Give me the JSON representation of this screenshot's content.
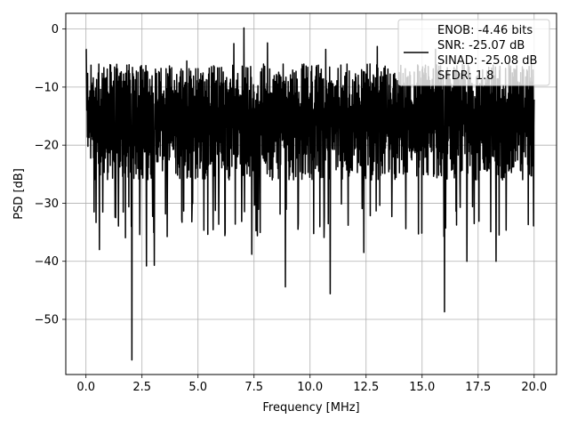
{
  "chart_data": {
    "type": "line",
    "title": "",
    "xlabel": "Frequency [MHz]",
    "ylabel": "PSD [dB]",
    "xlim": [
      -0.9,
      21.0
    ],
    "ylim": [
      -59.5,
      2.7
    ],
    "xticks": [
      0.0,
      2.5,
      5.0,
      7.5,
      10.0,
      12.5,
      15.0,
      17.5,
      20.0
    ],
    "xtick_labels": [
      "0.0",
      "2.5",
      "5.0",
      "7.5",
      "10.0",
      "12.5",
      "15.0",
      "17.5",
      "20.0"
    ],
    "yticks": [
      0,
      -10,
      -20,
      -30,
      -40,
      -50
    ],
    "ytick_labels": [
      "0",
      "−10",
      "−20",
      "−30",
      "−40",
      "−50"
    ],
    "grid": true,
    "legend_position": "top-right",
    "series": [
      {
        "color": "#000000",
        "x_range": [
          0.0,
          20.0
        ],
        "typical_range_db": [
          -30,
          -6
        ],
        "peaks": [
          {
            "x": 0.0,
            "y": -3.5
          },
          {
            "x": 4.5,
            "y": -5.5
          },
          {
            "x": 6.6,
            "y": -2.5
          },
          {
            "x": 7.05,
            "y": 0.2
          },
          {
            "x": 8.1,
            "y": -2.4
          },
          {
            "x": 10.7,
            "y": -3.5
          },
          {
            "x": 13.0,
            "y": -3.0
          },
          {
            "x": 15.6,
            "y": -3.5
          }
        ],
        "dips": [
          {
            "x": 0.6,
            "y": -38.0
          },
          {
            "x": 2.05,
            "y": -57.0
          },
          {
            "x": 2.7,
            "y": -40.8
          },
          {
            "x": 3.05,
            "y": -40.7
          },
          {
            "x": 7.4,
            "y": -38.8
          },
          {
            "x": 8.9,
            "y": -44.4
          },
          {
            "x": 10.9,
            "y": -45.6
          },
          {
            "x": 12.4,
            "y": -38.5
          },
          {
            "x": 16.0,
            "y": -48.7
          },
          {
            "x": 17.0,
            "y": -40.0
          },
          {
            "x": 18.3,
            "y": -40.0
          }
        ]
      }
    ],
    "legend": {
      "lines": [
        "ENOB: -4.46 bits",
        "SNR: -25.07 dB",
        "SINAD: -25.08 dB",
        "SFDR: 1.8"
      ]
    }
  }
}
